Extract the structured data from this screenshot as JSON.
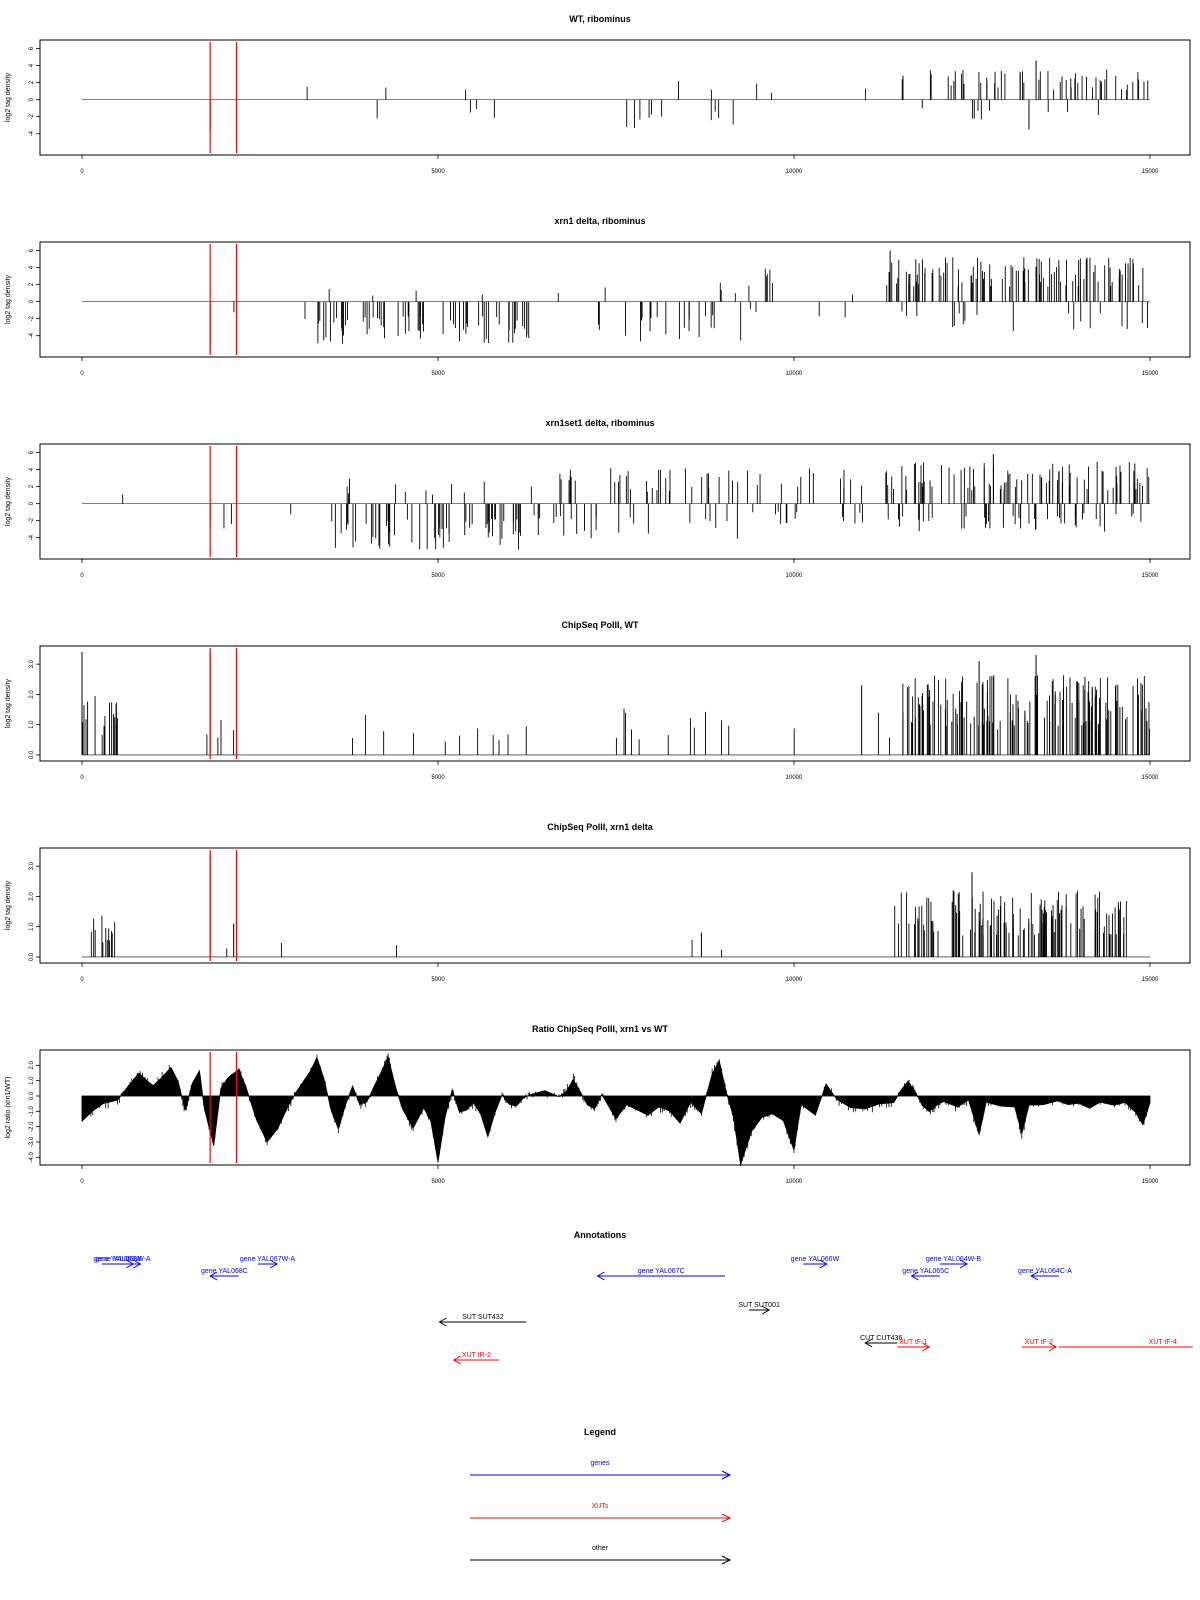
{
  "chart_data": [
    {
      "type": "bar",
      "title": "WT, ribominus",
      "ylabel": "log2 tag density",
      "xlim": [
        0,
        15000
      ],
      "ylim": [
        -6.5,
        7
      ],
      "yticks": [
        -4,
        -2,
        0,
        2,
        4,
        6
      ],
      "xticks": [
        0,
        5000,
        10000,
        15000
      ],
      "markers": [
        1800,
        2170
      ],
      "marker_color": "#ff0000",
      "groups": [
        {
          "from": 2900,
          "to": 3300,
          "density": 0.02,
          "pos": 1.8,
          "neg": 1.5,
          "pfrac": 0.5
        },
        {
          "from": 3800,
          "to": 5800,
          "density": 0.03,
          "pos": 1.5,
          "neg": 2.5,
          "pfrac": 0.25
        },
        {
          "from": 7200,
          "to": 9200,
          "density": 0.06,
          "pos": 2.5,
          "neg": 3.2,
          "pfrac": 0.3
        },
        {
          "from": 9400,
          "to": 9700,
          "density": 0.06,
          "pos": 2.2,
          "neg": 0.6,
          "pfrac": 0.9
        },
        {
          "from": 11000,
          "to": 11500,
          "density": 0.01,
          "pos": 2.3,
          "neg": 0.5,
          "pfrac": 1
        },
        {
          "from": 11500,
          "to": 15000,
          "density": 0.18,
          "pos": 3.2,
          "neg": 2.5,
          "pfrac": 0.8
        }
      ],
      "spikes": [
        [
          1800,
          -3.8
        ],
        [
          2170,
          -3.8
        ],
        [
          13400,
          4.6
        ],
        [
          13300,
          -3.5
        ]
      ]
    },
    {
      "type": "bar",
      "title": "xrn1 delta, ribominus",
      "ylabel": "log2 tag density",
      "xlim": [
        0,
        15000
      ],
      "ylim": [
        -6.5,
        7
      ],
      "yticks": [
        -4,
        -2,
        0,
        2,
        4,
        6
      ],
      "xticks": [
        0,
        5000,
        10000,
        15000
      ],
      "markers": [
        1800,
        2170
      ],
      "marker_color": "#ff0000",
      "groups": [
        {
          "from": 1750,
          "to": 2300,
          "density": 0.02,
          "pos": 0.5,
          "neg": 2.5,
          "pfrac": 0.1
        },
        {
          "from": 2800,
          "to": 3200,
          "density": 0.02,
          "pos": 0.5,
          "neg": 2.2,
          "pfrac": 0
        },
        {
          "from": 3300,
          "to": 6300,
          "density": 0.22,
          "pos": 1.5,
          "neg": 4.5,
          "pfrac": 0.05
        },
        {
          "from": 6500,
          "to": 7000,
          "density": 0.02,
          "pos": 1.5,
          "neg": 0.5,
          "pfrac": 0.8
        },
        {
          "from": 7200,
          "to": 9300,
          "density": 0.12,
          "pos": 2.8,
          "neg": 4.5,
          "pfrac": 0.25
        },
        {
          "from": 9300,
          "to": 9700,
          "density": 0.2,
          "pos": 3.8,
          "neg": 1.5,
          "pfrac": 0.85
        },
        {
          "from": 9900,
          "to": 11200,
          "density": 0.02,
          "pos": 1.5,
          "neg": 2.8,
          "pfrac": 0.4
        },
        {
          "from": 11300,
          "to": 15000,
          "density": 0.35,
          "pos": 4.8,
          "neg": 3.2,
          "pfrac": 0.8
        }
      ],
      "spikes": [
        [
          1800,
          -5.6
        ],
        [
          2170,
          -5.6
        ],
        [
          11350,
          6.0
        ]
      ]
    },
    {
      "type": "bar",
      "title": "xrn1set1 delta, ribominus",
      "ylabel": "log2 tag density",
      "xlim": [
        0,
        15000
      ],
      "ylim": [
        -6.5,
        7
      ],
      "yticks": [
        -4,
        -2,
        0,
        2,
        4,
        6
      ],
      "xticks": [
        0,
        5000,
        10000,
        15000
      ],
      "markers": [
        1800,
        2170
      ],
      "marker_color": "#ff0000",
      "groups": [
        {
          "from": 550,
          "to": 900,
          "density": 0.006,
          "pos": 1.3,
          "neg": 0.2,
          "pfrac": 1
        },
        {
          "from": 1750,
          "to": 2300,
          "density": 0.03,
          "pos": 1.2,
          "neg": 2.8,
          "pfrac": 0.3
        },
        {
          "from": 2900,
          "to": 3500,
          "density": 0.02,
          "pos": 0.5,
          "neg": 2.0,
          "pfrac": 0.2
        },
        {
          "from": 3500,
          "to": 6300,
          "density": 0.24,
          "pos": 3.0,
          "neg": 5.0,
          "pfrac": 0.25
        },
        {
          "from": 6300,
          "to": 9300,
          "density": 0.2,
          "pos": 3.8,
          "neg": 3.8,
          "pfrac": 0.6
        },
        {
          "from": 9300,
          "to": 11300,
          "density": 0.14,
          "pos": 4.0,
          "neg": 2.5,
          "pfrac": 0.7
        },
        {
          "from": 11300,
          "to": 15000,
          "density": 0.35,
          "pos": 4.5,
          "neg": 3.0,
          "pfrac": 0.7
        }
      ],
      "spikes": [
        [
          1800,
          -2.8
        ],
        [
          2170,
          -5.6
        ],
        [
          12800,
          5.8
        ]
      ]
    },
    {
      "type": "bar",
      "title": "ChipSeq PolII, WT",
      "ylabel": "log2 tag density",
      "xlim": [
        0,
        15000
      ],
      "ylim": [
        -0.2,
        3.6
      ],
      "yticks": [
        0.0,
        1.0,
        2.0,
        3.0
      ],
      "xticks": [
        0,
        5000,
        10000,
        15000
      ],
      "markers": [
        1800,
        2170
      ],
      "marker_color": "#ff0000",
      "groups": [
        {
          "from": 0,
          "to": 550,
          "density": 0.3,
          "pos": 1.8,
          "neg": 0,
          "pfrac": 1
        },
        {
          "from": 1300,
          "to": 2500,
          "density": 0.03,
          "pos": 1.3,
          "neg": 0,
          "pfrac": 1
        },
        {
          "from": 3500,
          "to": 6300,
          "density": 0.04,
          "pos": 1.2,
          "neg": 0,
          "pfrac": 1
        },
        {
          "from": 7400,
          "to": 9900,
          "density": 0.045,
          "pos": 1.4,
          "neg": 0,
          "pfrac": 1
        },
        {
          "from": 10000,
          "to": 11500,
          "density": 0.02,
          "pos": 1.3,
          "neg": 0,
          "pfrac": 1
        },
        {
          "from": 11500,
          "to": 15000,
          "density": 0.45,
          "pos": 2.4,
          "neg": 0,
          "pfrac": 1
        }
      ],
      "spikes": [
        [
          0,
          3.4
        ],
        [
          1800,
          3.4
        ],
        [
          2170,
          3.4
        ],
        [
          13400,
          3.3
        ],
        [
          12600,
          3.1
        ],
        [
          10950,
          2.3
        ]
      ]
    },
    {
      "type": "bar",
      "title": "ChipSeq PolII, xrn1 delta",
      "ylabel": "log2 tag density",
      "xlim": [
        0,
        15000
      ],
      "ylim": [
        -0.2,
        3.6
      ],
      "yticks": [
        0.0,
        1.0,
        2.0,
        3.0
      ],
      "xticks": [
        0,
        5000,
        10000,
        15000
      ],
      "markers": [
        1800,
        2170
      ],
      "marker_color": "#ff0000",
      "groups": [
        {
          "from": 0,
          "to": 480,
          "density": 0.25,
          "pos": 1.3,
          "neg": 0,
          "pfrac": 1
        },
        {
          "from": 1900,
          "to": 2900,
          "density": 0.015,
          "pos": 0.6,
          "neg": 0,
          "pfrac": 1
        },
        {
          "from": 3900,
          "to": 5700,
          "density": 0.006,
          "pos": 0.5,
          "neg": 0,
          "pfrac": 1
        },
        {
          "from": 7700,
          "to": 9900,
          "density": 0.008,
          "pos": 0.6,
          "neg": 0,
          "pfrac": 1
        },
        {
          "from": 11400,
          "to": 14700,
          "density": 0.4,
          "pos": 2.0,
          "neg": 0,
          "pfrac": 1
        }
      ],
      "spikes": [
        [
          1800,
          3.4
        ],
        [
          2170,
          3.4
        ],
        [
          2130,
          1.1
        ],
        [
          12500,
          2.8
        ],
        [
          8700,
          0.8
        ]
      ]
    },
    {
      "type": "area",
      "title": "Ratio ChipSeq PolII, xrn1 vs WT",
      "ylabel": "log2 ratio (xrn1/WT)",
      "xlim": [
        0,
        15000
      ],
      "ylim": [
        -4.5,
        3.0
      ],
      "yticks": [
        -4,
        -3,
        -2,
        -1,
        0,
        1,
        2
      ],
      "xticks": [
        0,
        5000,
        10000,
        15000
      ],
      "markers": [
        1800,
        2170
      ],
      "marker_color": "#ff0000",
      "profile": [
        [
          0,
          -1.5
        ],
        [
          150,
          -1.0
        ],
        [
          300,
          -0.6
        ],
        [
          500,
          -0.4
        ],
        [
          650,
          0.6
        ],
        [
          800,
          1.5
        ],
        [
          900,
          1.0
        ],
        [
          1000,
          0.5
        ],
        [
          1100,
          1.2
        ],
        [
          1250,
          1.9
        ],
        [
          1350,
          0.8
        ],
        [
          1450,
          -1.0
        ],
        [
          1550,
          0.7
        ],
        [
          1650,
          1.5
        ],
        [
          1720,
          -0.8
        ],
        [
          1850,
          -3.2
        ],
        [
          1950,
          0.5
        ],
        [
          2050,
          1.2
        ],
        [
          2200,
          1.8
        ],
        [
          2300,
          0.5
        ],
        [
          2450,
          -1.5
        ],
        [
          2600,
          -3.0
        ],
        [
          2750,
          -2.0
        ],
        [
          2900,
          -0.8
        ],
        [
          3000,
          0.2
        ],
        [
          3200,
          1.5
        ],
        [
          3300,
          2.5
        ],
        [
          3400,
          1.0
        ],
        [
          3500,
          -0.8
        ],
        [
          3600,
          -2.2
        ],
        [
          3700,
          -0.5
        ],
        [
          3800,
          0.6
        ],
        [
          3900,
          -0.6
        ],
        [
          4000,
          -0.4
        ],
        [
          4100,
          0.5
        ],
        [
          4200,
          1.5
        ],
        [
          4300,
          2.6
        ],
        [
          4400,
          0.8
        ],
        [
          4500,
          -0.8
        ],
        [
          4650,
          -2.2
        ],
        [
          4800,
          -0.8
        ],
        [
          4900,
          -1.5
        ],
        [
          5000,
          -4.2
        ],
        [
          5100,
          -1.5
        ],
        [
          5200,
          0.3
        ],
        [
          5300,
          -1.0
        ],
        [
          5400,
          -0.8
        ],
        [
          5500,
          -0.5
        ],
        [
          5600,
          -1.2
        ],
        [
          5700,
          -2.5
        ],
        [
          5800,
          -1.0
        ],
        [
          5900,
          0.2
        ],
        [
          6000,
          -0.6
        ],
        [
          6100,
          -0.5
        ],
        [
          6200,
          -0.3
        ],
        [
          6300,
          0.1
        ],
        [
          6500,
          0.2
        ],
        [
          6700,
          0.0
        ],
        [
          6800,
          0.4
        ],
        [
          6900,
          1.2
        ],
        [
          7000,
          0.2
        ],
        [
          7100,
          -0.5
        ],
        [
          7200,
          -0.8
        ],
        [
          7300,
          0.0
        ],
        [
          7400,
          -0.7
        ],
        [
          7500,
          -1.5
        ],
        [
          7650,
          -0.5
        ],
        [
          7800,
          -0.8
        ],
        [
          7950,
          -1.2
        ],
        [
          8100,
          -0.8
        ],
        [
          8250,
          -1.0
        ],
        [
          8400,
          -1.6
        ],
        [
          8550,
          -0.5
        ],
        [
          8700,
          -1.0
        ],
        [
          8850,
          1.5
        ],
        [
          8950,
          2.2
        ],
        [
          9050,
          0.2
        ],
        [
          9150,
          -1.5
        ],
        [
          9250,
          -4.5
        ],
        [
          9400,
          -2.5
        ],
        [
          9550,
          -1.4
        ],
        [
          9700,
          -1.0
        ],
        [
          9850,
          -1.6
        ],
        [
          10000,
          -3.5
        ],
        [
          10100,
          -0.6
        ],
        [
          10300,
          -1.2
        ],
        [
          10450,
          0.8
        ],
        [
          10600,
          -0.3
        ],
        [
          10800,
          -0.8
        ],
        [
          11000,
          -1.0
        ],
        [
          11200,
          -0.6
        ],
        [
          11400,
          -0.4
        ],
        [
          11500,
          0.2
        ],
        [
          11600,
          1.0
        ],
        [
          11700,
          0.2
        ],
        [
          11800,
          -0.6
        ],
        [
          11900,
          -1.0
        ],
        [
          12000,
          -0.7
        ],
        [
          12100,
          -0.3
        ],
        [
          12300,
          -0.8
        ],
        [
          12450,
          -0.4
        ],
        [
          12600,
          -2.5
        ],
        [
          12700,
          -0.5
        ],
        [
          12900,
          -0.6
        ],
        [
          13100,
          -0.8
        ],
        [
          13200,
          -2.6
        ],
        [
          13300,
          -0.6
        ],
        [
          13500,
          -0.4
        ],
        [
          13700,
          -0.3
        ],
        [
          13850,
          -0.5
        ],
        [
          14000,
          -0.4
        ],
        [
          14150,
          -0.7
        ],
        [
          14300,
          -0.3
        ],
        [
          14500,
          -0.5
        ],
        [
          14650,
          -0.4
        ],
        [
          14800,
          -1.0
        ],
        [
          14900,
          -1.8
        ],
        [
          15000,
          -0.5
        ]
      ]
    }
  ],
  "annotations": {
    "title": "Annotations",
    "features": [
      {
        "label": "gene YAL068W-A",
        "kind": "gene",
        "from": 330,
        "to": 820,
        "strand": "+",
        "row": 0
      },
      {
        "label": "gene YAL069W",
        "kind": "gene",
        "from": 280,
        "to": 720,
        "strand": "+",
        "row": 0
      },
      {
        "label": "gene YAL068C",
        "kind": "gene",
        "from": 1800,
        "to": 2200,
        "strand": "-",
        "row": 1
      },
      {
        "label": "gene YAL067W-A",
        "kind": "gene",
        "from": 2470,
        "to": 2740,
        "strand": "+",
        "row": 0
      },
      {
        "label": "gene YAL067C",
        "kind": "gene",
        "from": 7240,
        "to": 9030,
        "strand": "-",
        "row": 1
      },
      {
        "label": "gene YAL066W",
        "kind": "gene",
        "from": 10130,
        "to": 10460,
        "strand": "+",
        "row": 0
      },
      {
        "label": "gene YAL065C",
        "kind": "gene",
        "from": 11650,
        "to": 12050,
        "strand": "-",
        "row": 1
      },
      {
        "label": "gene YAL064W-B",
        "kind": "gene",
        "from": 12050,
        "to": 12430,
        "strand": "+",
        "row": 0
      },
      {
        "label": "gene YAL064C-A",
        "kind": "gene",
        "from": 13330,
        "to": 13720,
        "strand": "-",
        "row": 1
      },
      {
        "label": "SUT SUT432",
        "kind": "other",
        "from": 5020,
        "to": 6240,
        "strand": "-",
        "row": 3
      },
      {
        "label": "SUT SUT001",
        "kind": "other",
        "from": 9370,
        "to": 9650,
        "strand": "+",
        "row": 2
      },
      {
        "label": "CUT CUT436",
        "kind": "other",
        "from": 11000,
        "to": 11450,
        "strand": "-",
        "row": 4
      },
      {
        "label": "XUT tF-1",
        "kind": "xut",
        "from": 11450,
        "to": 11900,
        "strand": "+",
        "row": 5
      },
      {
        "label": "XUT tF-2",
        "kind": "xut",
        "from": 13200,
        "to": 13680,
        "strand": "+",
        "row": 5
      },
      {
        "label": "XUT tF-4",
        "kind": "xut",
        "from": 13720,
        "to": 15600,
        "strand": "none",
        "row": 5
      },
      {
        "label": "XUT tR-2",
        "kind": "xut",
        "from": 5220,
        "to": 5860,
        "strand": "-",
        "row": 6
      }
    ]
  },
  "legend": {
    "title": "Legend",
    "items": [
      {
        "label": "genes",
        "color": "#0000ff"
      },
      {
        "label": "XUTs",
        "color": "#ff0000"
      },
      {
        "label": "other",
        "color": "#000000"
      }
    ]
  },
  "colors": {
    "gene": "#0000ff",
    "xut": "#ff0000",
    "other": "#000000"
  }
}
